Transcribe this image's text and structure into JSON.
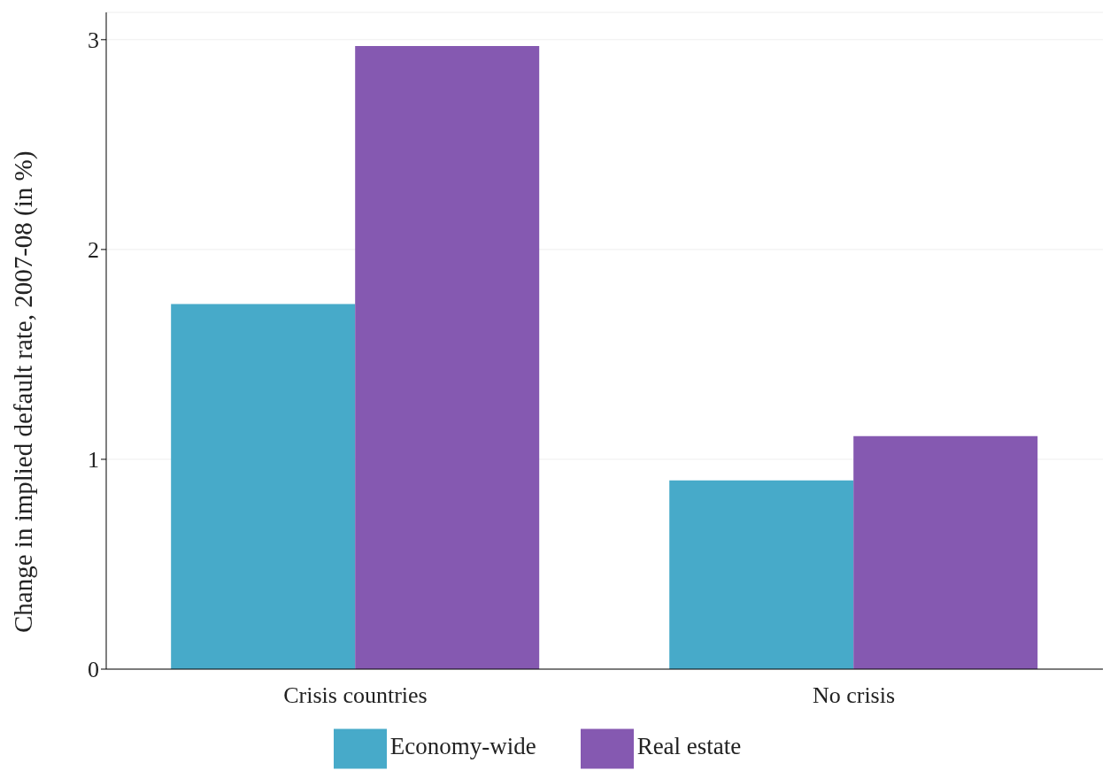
{
  "chart_data": {
    "type": "bar",
    "ylabel": "Change in implied default rate, 2007-08 (in %)",
    "categories": [
      "Crisis countries",
      "No crisis"
    ],
    "series": [
      {
        "name": "Economy-wide",
        "color": "#47aac9",
        "values": [
          1.74,
          0.9
        ]
      },
      {
        "name": "Real estate",
        "color": "#8559b1",
        "values": [
          2.97,
          1.11
        ]
      }
    ],
    "ylim": [
      0,
      3.13
    ],
    "yticks": [
      0,
      1,
      2,
      3
    ],
    "grid": "y",
    "legend": "bottom"
  }
}
